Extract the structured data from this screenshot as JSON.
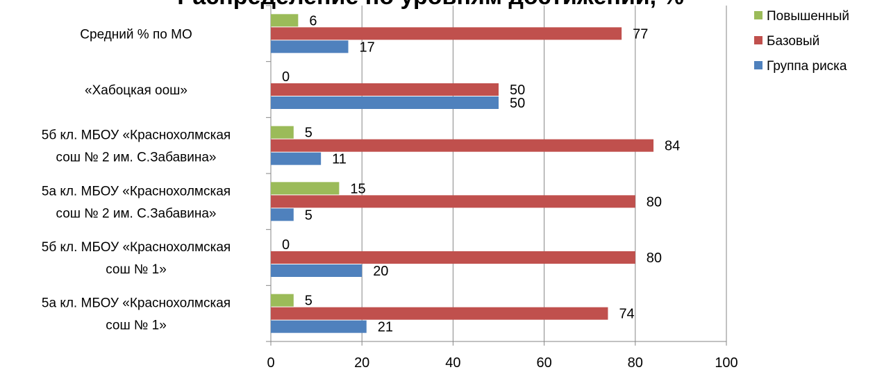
{
  "chart_data": {
    "type": "bar",
    "orientation": "horizontal",
    "title": "Распределение по уровням достижений, %",
    "categories": [
      "Средний %  по МО",
      "«Хабоцкая оош»",
      "5б кл. МБОУ «Краснохолмская сош № 2 им. С.Забавина»",
      "5а кл. МБОУ «Краснохолмская сош № 2 им. С.Забавина»",
      "5б кл.  МБОУ «Краснохолмская сош № 1»",
      "5а кл.  МБОУ «Краснохолмская сош № 1»"
    ],
    "category_lines": [
      [
        "Средний %  по МО"
      ],
      [
        "«Хабоцкая оош»"
      ],
      [
        "5б кл. МБОУ «Краснохолмская",
        "сош № 2 им. С.Забавина»"
      ],
      [
        "5а кл. МБОУ «Краснохолмская",
        "сош № 2 им. С.Забавина»"
      ],
      [
        "5б кл.  МБОУ «Краснохолмская",
        "сош № 1»"
      ],
      [
        "5а кл.  МБОУ «Краснохолмская",
        "сош № 1»"
      ]
    ],
    "series": [
      {
        "name": "Повышенный",
        "color": "#9BBB59",
        "values": [
          6,
          0,
          5,
          15,
          0,
          5
        ]
      },
      {
        "name": "Базовый",
        "color": "#C0504D",
        "values": [
          77,
          50,
          84,
          80,
          80,
          74
        ]
      },
      {
        "name": "Группа риска",
        "color": "#4F81BD",
        "values": [
          17,
          50,
          11,
          5,
          20,
          21
        ]
      }
    ],
    "xlim": [
      0,
      100
    ],
    "x_ticks": [
      0,
      20,
      40,
      60,
      80,
      100
    ],
    "grid": true,
    "legend_position": "top-right"
  }
}
